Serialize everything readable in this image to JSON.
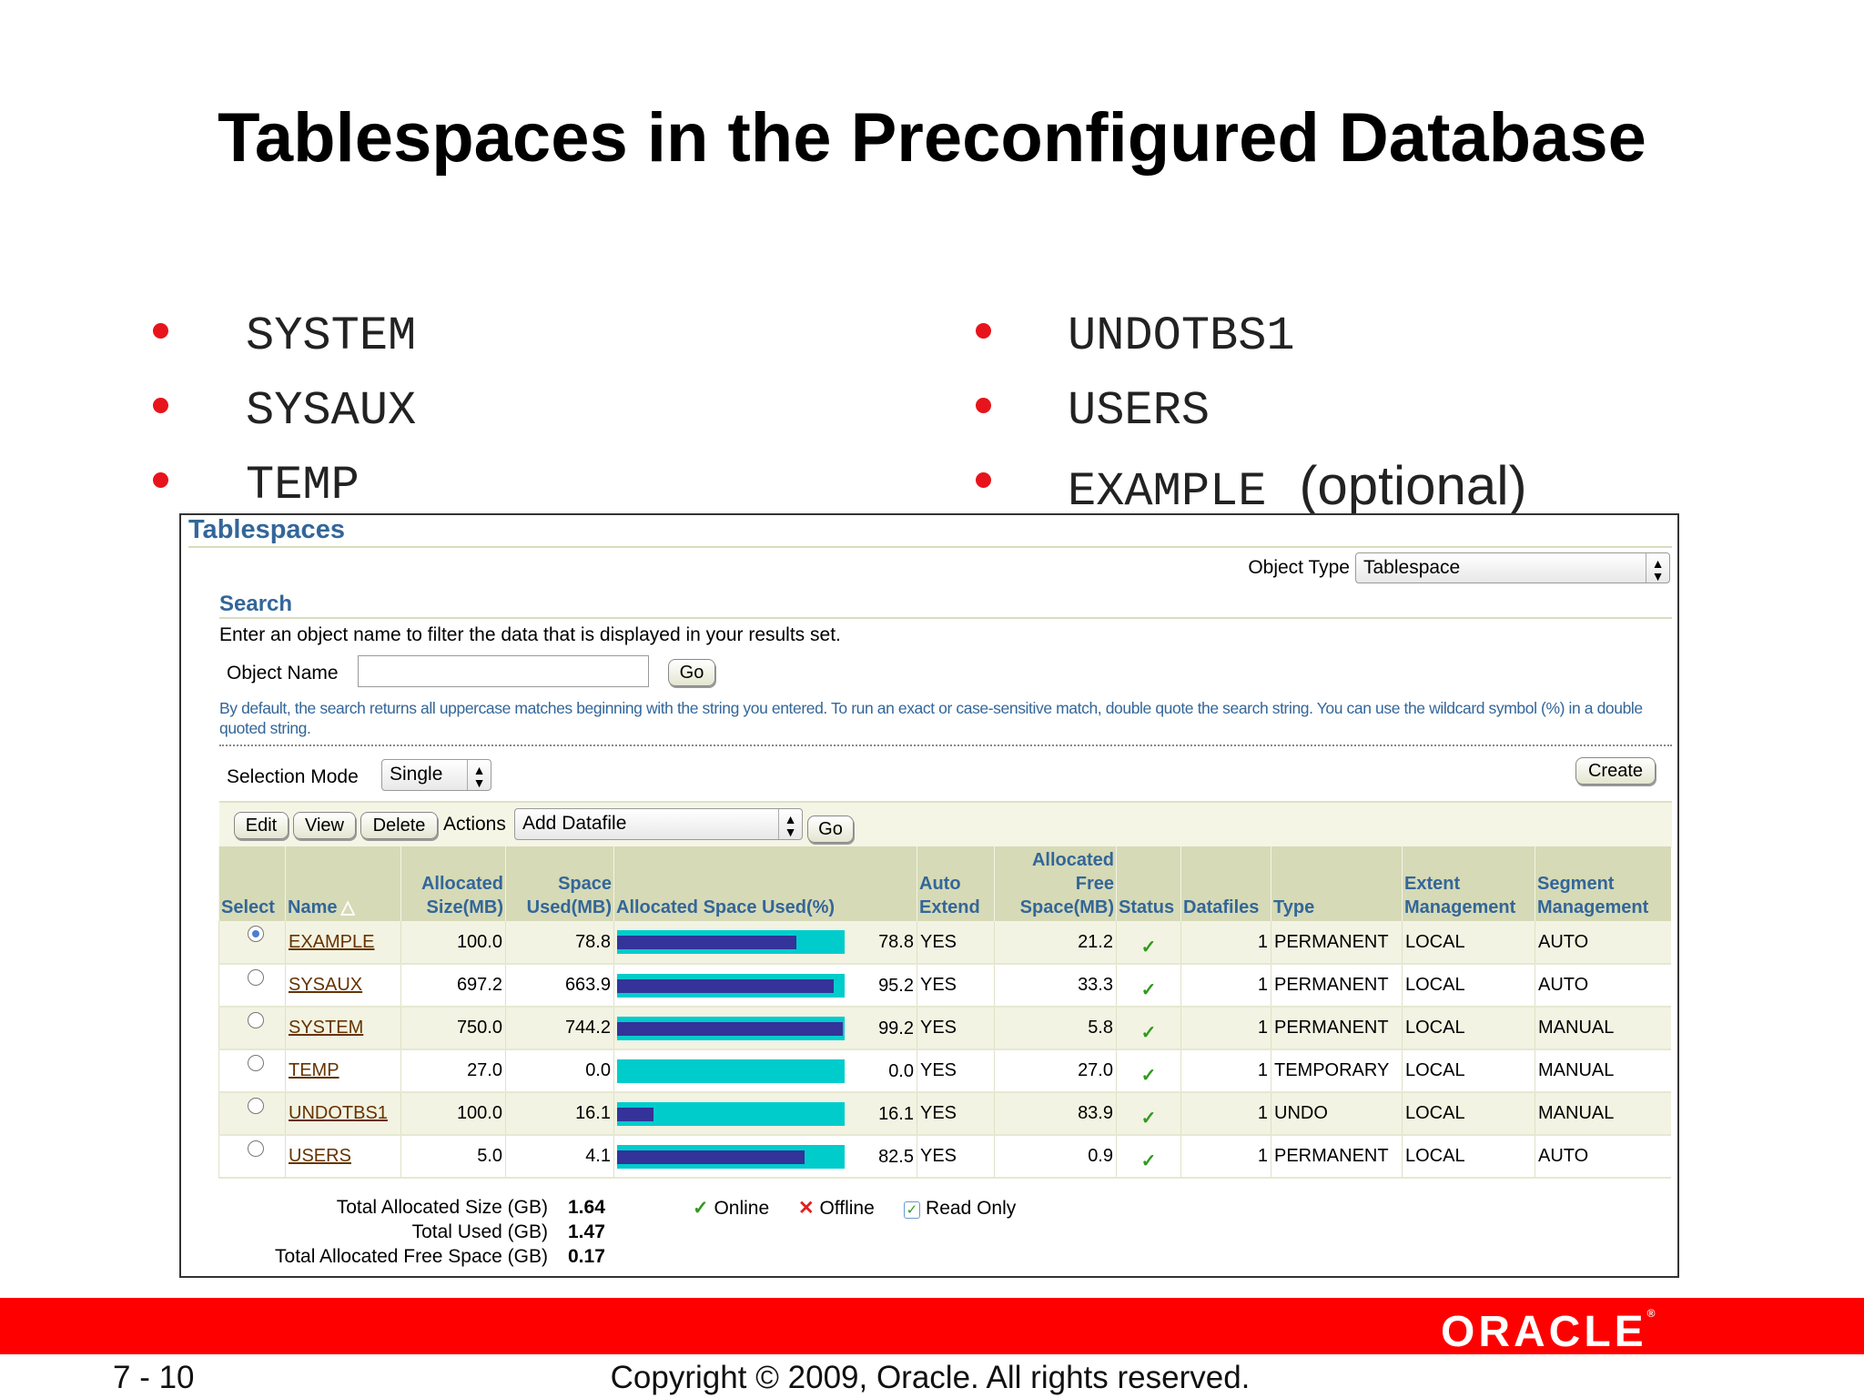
{
  "slide": {
    "title": "Tablespaces in the Preconfigured Database",
    "bullets_left": [
      "SYSTEM",
      "SYSAUX",
      "TEMP"
    ],
    "bullets_right": [
      "UNDOTBS1",
      "USERS",
      "EXAMPLE"
    ],
    "optional_note": "(optional)",
    "page_number": "7 - 10",
    "copyright": "Copyright © 2009, Oracle. All rights reserved.",
    "logo_text": "ORACLE",
    "brand_color": "#ff0000"
  },
  "panel": {
    "title": "Tablespaces",
    "object_type_label": "Object Type",
    "object_type_value": "Tablespace",
    "search_heading": "Search",
    "search_instruction": "Enter an object name to filter the data that is displayed in your results set.",
    "object_name_label": "Object Name",
    "object_name_value": "",
    "go_label": "Go",
    "search_hint": "By default, the search returns all uppercase matches beginning with the string you entered. To run an exact or case-sensitive match, double quote the search string. You can use the wildcard symbol (%) in a double quoted string.",
    "selection_mode_label": "Selection Mode",
    "selection_mode_value": "Single",
    "create_label": "Create",
    "toolbar": {
      "edit": "Edit",
      "view": "View",
      "delete": "Delete",
      "actions_label": "Actions",
      "actions_value": "Add Datafile",
      "go": "Go"
    },
    "columns": [
      "Select",
      "Name",
      "Allocated Size(MB)",
      "Space Used(MB)",
      "Allocated Space Used(%)",
      "Auto Extend",
      "Allocated Free Space(MB)",
      "Status",
      "Datafiles",
      "Type",
      "Extent Management",
      "Segment Management"
    ],
    "sort_indicator": "△",
    "rows": [
      {
        "selected": true,
        "name": "EXAMPLE",
        "alloc": "100.0",
        "used": "78.8",
        "pct": "78.8",
        "auto": "YES",
        "free": "21.2",
        "status": "online",
        "datafiles": "1",
        "type": "PERMANENT",
        "extent": "LOCAL",
        "segment": "AUTO"
      },
      {
        "selected": false,
        "name": "SYSAUX",
        "alloc": "697.2",
        "used": "663.9",
        "pct": "95.2",
        "auto": "YES",
        "free": "33.3",
        "status": "online",
        "datafiles": "1",
        "type": "PERMANENT",
        "extent": "LOCAL",
        "segment": "AUTO"
      },
      {
        "selected": false,
        "name": "SYSTEM",
        "alloc": "750.0",
        "used": "744.2",
        "pct": "99.2",
        "auto": "YES",
        "free": "5.8",
        "status": "online",
        "datafiles": "1",
        "type": "PERMANENT",
        "extent": "LOCAL",
        "segment": "MANUAL"
      },
      {
        "selected": false,
        "name": "TEMP",
        "alloc": "27.0",
        "used": "0.0",
        "pct": "0.0",
        "auto": "YES",
        "free": "27.0",
        "status": "online",
        "datafiles": "1",
        "type": "TEMPORARY",
        "extent": "LOCAL",
        "segment": "MANUAL"
      },
      {
        "selected": false,
        "name": "UNDOTBS1",
        "alloc": "100.0",
        "used": "16.1",
        "pct": "16.1",
        "auto": "YES",
        "free": "83.9",
        "status": "online",
        "datafiles": "1",
        "type": "UNDO",
        "extent": "LOCAL",
        "segment": "MANUAL"
      },
      {
        "selected": false,
        "name": "USERS",
        "alloc": "5.0",
        "used": "4.1",
        "pct": "82.5",
        "auto": "YES",
        "free": "0.9",
        "status": "online",
        "datafiles": "1",
        "type": "PERMANENT",
        "extent": "LOCAL",
        "segment": "AUTO"
      }
    ],
    "totals": [
      {
        "label": "Total Allocated Size (GB)",
        "value": "1.64"
      },
      {
        "label": "Total Used (GB)",
        "value": "1.47"
      },
      {
        "label": "Total Allocated Free Space (GB)",
        "value": "0.17"
      }
    ],
    "legend": {
      "online": "Online",
      "offline": "Offline",
      "read_only": "Read Only"
    },
    "colors": {
      "bar_used": "#333399",
      "bar_total": "#00cccc",
      "header_text": "#336699",
      "link": "#663300"
    }
  }
}
